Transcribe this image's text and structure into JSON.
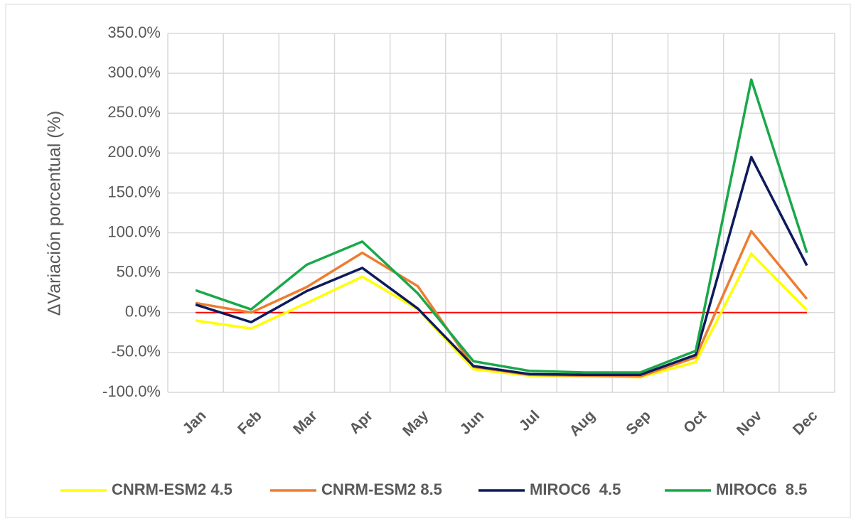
{
  "chart_data": {
    "type": "line",
    "y_label": "ΔVariación porcentual (%)",
    "categories": [
      "Jan",
      "Feb",
      "Mar",
      "Apr",
      "May",
      "Jun",
      "Jul",
      "Aug",
      "Sep",
      "Oct",
      "Nov",
      "Dec"
    ],
    "series": [
      {
        "name": "CNRM-ESM2 4.5",
        "color": "#ffff00",
        "values": [
          -10,
          -20,
          12,
          45,
          4,
          -71,
          -79,
          -80,
          -81,
          -62,
          74,
          3
        ]
      },
      {
        "name": "CNRM-ESM2 8.5",
        "color": "#ed7d31",
        "values": [
          12,
          0,
          32,
          75,
          33,
          -68,
          -78,
          -79,
          -80,
          -56,
          102,
          17
        ]
      },
      {
        "name": "MIROC6  4.5",
        "color": "#0d1a5c",
        "values": [
          10,
          -12,
          27,
          56,
          5,
          -67,
          -77,
          -78,
          -78,
          -53,
          195,
          59
        ]
      },
      {
        "name": "MIROC6  8.5",
        "color": "#1aa84a",
        "values": [
          28,
          4,
          60,
          89,
          24,
          -61,
          -73,
          -75,
          -75,
          -48,
          292,
          75
        ]
      }
    ],
    "reference_line": {
      "value": 0,
      "color": "#ff0000"
    },
    "ylim": [
      -100,
      350
    ],
    "yticks": [
      {
        "value": -100,
        "label": "-100.0%"
      },
      {
        "value": -50,
        "label": "-50.0%"
      },
      {
        "value": 0,
        "label": "0.0%"
      },
      {
        "value": 50,
        "label": "50.0%"
      },
      {
        "value": 100,
        "label": "100.0%"
      },
      {
        "value": 150,
        "label": "150.0%"
      },
      {
        "value": 200,
        "label": "200.0%"
      },
      {
        "value": 250,
        "label": "250.0%"
      },
      {
        "value": 300,
        "label": "300.0%"
      },
      {
        "value": 350,
        "label": "350.0%"
      }
    ],
    "grid": true,
    "legend": "bottom"
  }
}
